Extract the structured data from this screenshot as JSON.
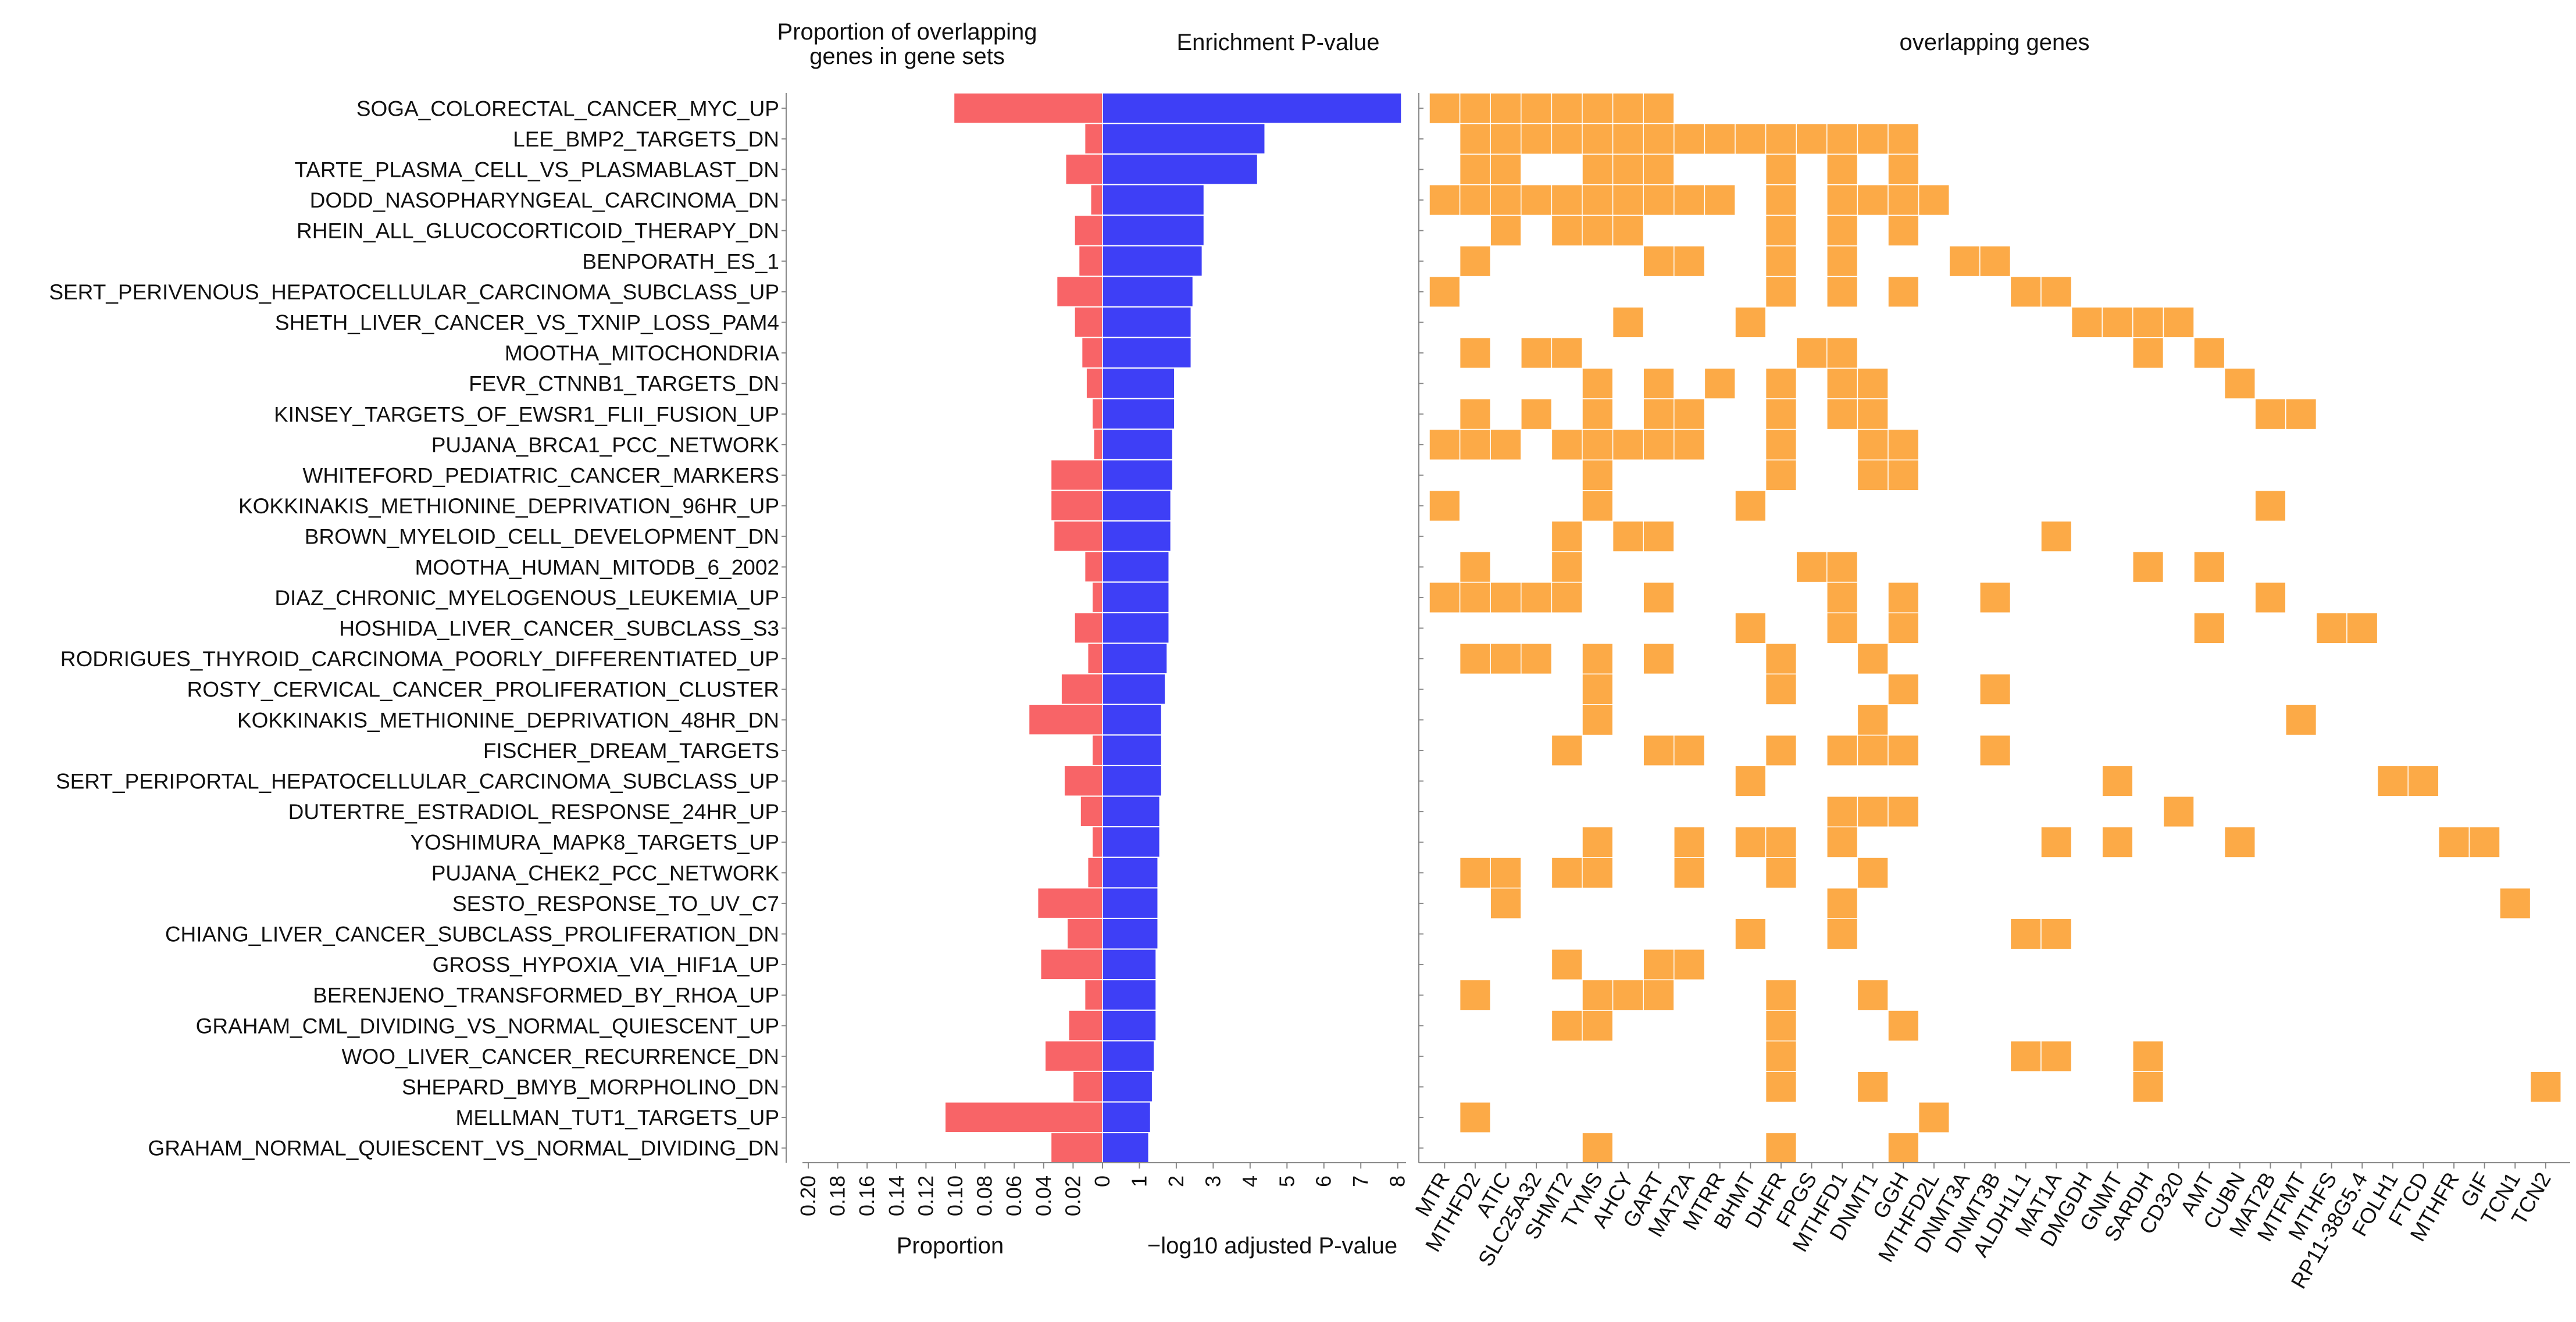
{
  "chart_data": {
    "type": "bar",
    "gene_sets": [
      "SOGA_COLORECTAL_CANCER_MYC_UP",
      "LEE_BMP2_TARGETS_DN",
      "TARTE_PLASMA_CELL_VS_PLASMABLAST_DN",
      "DODD_NASOPHARYNGEAL_CARCINOMA_DN",
      "RHEIN_ALL_GLUCOCORTICOID_THERAPY_DN",
      "BENPORATH_ES_1",
      "SERT_PERIVENOUS_HEPATOCELLULAR_CARCINOMA_SUBCLASS_UP",
      "SHETH_LIVER_CANCER_VS_TXNIP_LOSS_PAM4",
      "MOOTHA_MITOCHONDRIA",
      "FEVR_CTNNB1_TARGETS_DN",
      "KINSEY_TARGETS_OF_EWSR1_FLII_FUSION_UP",
      "PUJANA_BRCA1_PCC_NETWORK",
      "WHITEFORD_PEDIATRIC_CANCER_MARKERS",
      "KOKKINAKIS_METHIONINE_DEPRIVATION_96HR_UP",
      "BROWN_MYELOID_CELL_DEVELOPMENT_DN",
      "MOOTHA_HUMAN_MITODB_6_2002",
      "DIAZ_CHRONIC_MYELOGENOUS_LEUKEMIA_UP",
      "HOSHIDA_LIVER_CANCER_SUBCLASS_S3",
      "RODRIGUES_THYROID_CARCINOMA_POORLY_DIFFERENTIATED_UP",
      "ROSTY_CERVICAL_CANCER_PROLIFERATION_CLUSTER",
      "KOKKINAKIS_METHIONINE_DEPRIVATION_48HR_DN",
      "FISCHER_DREAM_TARGETS",
      "SERT_PERIPORTAL_HEPATOCELLULAR_CARCINOMA_SUBCLASS_UP",
      "DUTERTRE_ESTRADIOL_RESPONSE_24HR_UP",
      "YOSHIMURA_MAPK8_TARGETS_UP",
      "PUJANA_CHEK2_PCC_NETWORK",
      "SESTO_RESPONSE_TO_UV_C7",
      "CHIANG_LIVER_CANCER_SUBCLASS_PROLIFERATION_DN",
      "GROSS_HYPOXIA_VIA_HIF1A_UP",
      "BERENJENO_TRANSFORMED_BY_RHOA_UP",
      "GRAHAM_CML_DIVIDING_VS_NORMAL_QUIESCENT_UP",
      "WOO_LIVER_CANCER_RECURRENCE_DN",
      "SHEPARD_BMYB_MORPHOLINO_DN",
      "MELLMAN_TUT1_TARGETS_UP",
      "GRAHAM_NORMAL_QUIESCENT_VS_NORMAL_DIVIDING_DN"
    ],
    "proportion_panel": {
      "title": "Proportion of overlapping genes in gene sets",
      "title_lines": [
        "Proportion of overlapping",
        "genes in gene sets"
      ],
      "xlabel": "Proportion",
      "xlim": [
        0,
        0.2
      ],
      "ticks": [
        "0.20",
        "0.18",
        "0.16",
        "0.14",
        "0.12",
        "0.10",
        "0.08",
        "0.06",
        "0.04",
        "0.02"
      ],
      "tick_values": [
        0.2,
        0.18,
        0.16,
        0.14,
        0.12,
        0.1,
        0.08,
        0.06,
        0.04,
        0.02
      ],
      "color": "#f86467",
      "values": [
        0.101,
        0.012,
        0.025,
        0.008,
        0.019,
        0.016,
        0.031,
        0.019,
        0.014,
        0.011,
        0.007,
        0.006,
        0.035,
        0.035,
        0.033,
        0.012,
        0.007,
        0.019,
        0.01,
        0.028,
        0.05,
        0.007,
        0.026,
        0.015,
        0.007,
        0.01,
        0.044,
        0.024,
        0.042,
        0.012,
        0.023,
        0.039,
        0.02,
        0.107,
        0.035
      ]
    },
    "pvalue_panel": {
      "title": "Enrichment P-value",
      "xlabel": "−log10 adjusted P-value",
      "xlim": [
        0,
        8.1
      ],
      "ticks": [
        "0",
        "1",
        "2",
        "3",
        "4",
        "5",
        "6",
        "7",
        "8"
      ],
      "tick_values": [
        0,
        1,
        2,
        3,
        4,
        5,
        6,
        7,
        8
      ],
      "color": "#3e3ff6",
      "values": [
        8.1,
        4.4,
        4.2,
        2.75,
        2.75,
        2.7,
        2.45,
        2.4,
        2.4,
        1.95,
        1.95,
        1.9,
        1.9,
        1.85,
        1.85,
        1.8,
        1.8,
        1.8,
        1.75,
        1.7,
        1.6,
        1.6,
        1.6,
        1.55,
        1.55,
        1.5,
        1.5,
        1.5,
        1.45,
        1.45,
        1.45,
        1.4,
        1.35,
        1.3,
        1.25
      ]
    },
    "genes_panel": {
      "title": "overlapping genes",
      "color": "#fcaa47",
      "genes": [
        "MTR",
        "MTHFD2",
        "ATIC",
        "SLC25A32",
        "SHMT2",
        "TYMS",
        "AHCY",
        "GART",
        "MAT2A",
        "MTRR",
        "BHMT",
        "DHFR",
        "FPGS",
        "MTHFD1",
        "DNMT1",
        "GGH",
        "MTHFD2L",
        "DNMT3A",
        "DNMT3B",
        "ALDH1L1",
        "MAT1A",
        "DMGDH",
        "GNMT",
        "SARDH",
        "CD320",
        "AMT",
        "CUBN",
        "MAT2B",
        "MTFMT",
        "MTHFS",
        "RP11-38G5.4",
        "FOLH1",
        "FTCD",
        "MTHFR",
        "GIF",
        "TCN1",
        "TCN2"
      ],
      "matrix": [
        [
          0,
          1,
          2,
          3,
          4,
          5,
          6,
          7
        ],
        [
          1,
          2,
          3,
          4,
          5,
          6,
          7,
          8,
          9,
          10,
          11,
          12,
          13,
          14,
          15
        ],
        [
          1,
          2,
          5,
          6,
          7,
          11,
          13,
          15
        ],
        [
          0,
          1,
          2,
          3,
          4,
          5,
          6,
          7,
          8,
          9,
          11,
          13,
          14,
          15,
          16
        ],
        [
          2,
          4,
          5,
          6,
          11,
          13,
          15
        ],
        [
          1,
          7,
          8,
          11,
          13,
          17,
          18
        ],
        [
          0,
          11,
          13,
          15,
          19,
          20
        ],
        [
          6,
          10,
          21,
          22,
          23,
          24
        ],
        [
          1,
          3,
          4,
          12,
          13,
          23,
          25
        ],
        [
          5,
          7,
          9,
          11,
          13,
          14,
          26
        ],
        [
          1,
          3,
          5,
          7,
          8,
          11,
          13,
          14,
          27,
          28
        ],
        [
          0,
          1,
          2,
          4,
          5,
          6,
          7,
          8,
          11,
          14,
          15
        ],
        [
          5,
          11,
          14,
          15
        ],
        [
          0,
          5,
          10,
          27
        ],
        [
          4,
          6,
          7,
          20
        ],
        [
          1,
          4,
          12,
          13,
          23,
          25
        ],
        [
          0,
          1,
          2,
          3,
          4,
          7,
          13,
          15,
          18,
          27
        ],
        [
          10,
          13,
          15,
          25,
          29,
          30
        ],
        [
          1,
          2,
          3,
          5,
          7,
          11,
          14
        ],
        [
          5,
          11,
          15,
          18
        ],
        [
          5,
          14,
          28
        ],
        [
          4,
          7,
          8,
          11,
          13,
          14,
          15,
          18
        ],
        [
          10,
          22,
          31,
          32
        ],
        [
          13,
          14,
          15,
          24
        ],
        [
          5,
          8,
          10,
          11,
          13,
          20,
          22,
          26,
          33,
          34
        ],
        [
          1,
          2,
          4,
          5,
          8,
          11,
          14
        ],
        [
          2,
          13,
          35
        ],
        [
          10,
          13,
          19,
          20
        ],
        [
          4,
          7,
          8
        ],
        [
          1,
          5,
          6,
          7,
          11,
          14
        ],
        [
          4,
          5,
          11,
          15
        ],
        [
          11,
          19,
          20,
          23
        ],
        [
          11,
          14,
          23,
          36
        ],
        [
          1,
          16
        ],
        [
          5,
          11,
          15
        ]
      ]
    }
  }
}
